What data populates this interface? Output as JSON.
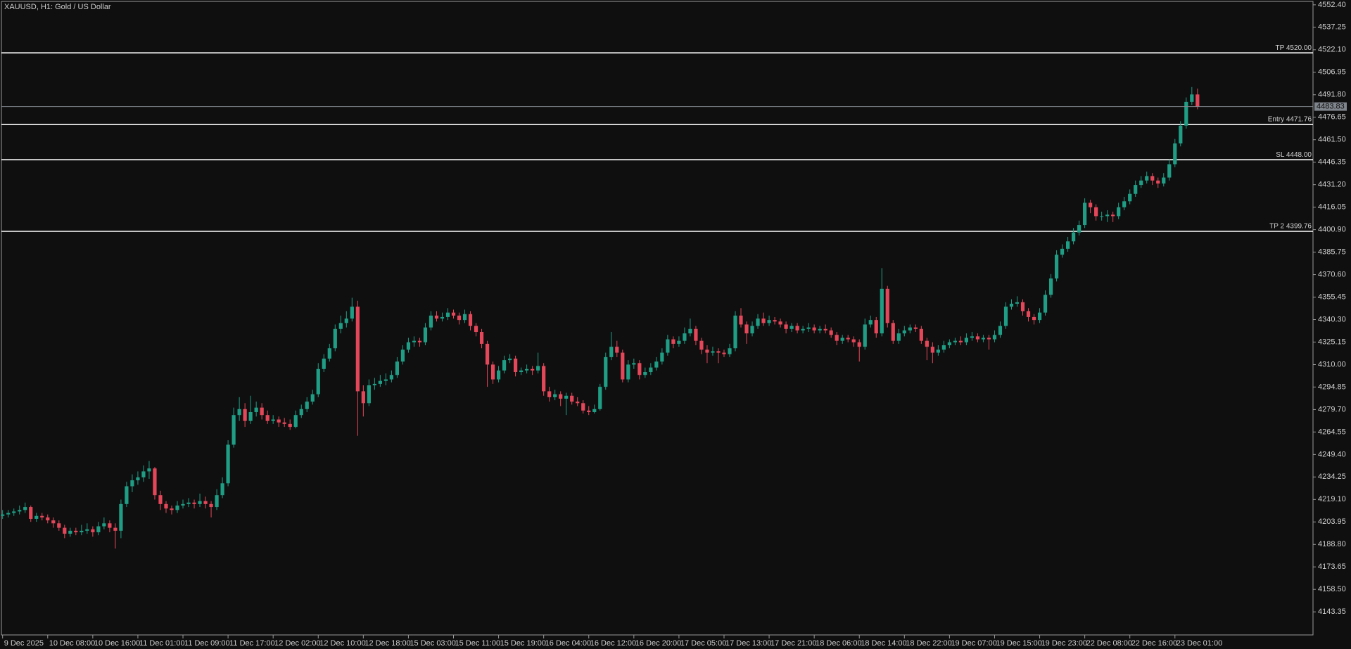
{
  "chart_data": {
    "type": "candlestick",
    "title": "XAUUSD, H1:  Gold / US Dollar",
    "up_color": "#1f9e85",
    "down_color": "#e5475a",
    "level_color": "#ffffff",
    "last_price_color": "#7f858c",
    "ylim": [
      4127.8,
      4554.7
    ],
    "yticks": [
      {
        "value": 4552.4,
        "label": "4552.40"
      },
      {
        "value": 4537.25,
        "label": "4537.25"
      },
      {
        "value": 4522.1,
        "label": "4522.10"
      },
      {
        "value": 4506.95,
        "label": "4506.95"
      },
      {
        "value": 4491.8,
        "label": "4491.80"
      },
      {
        "value": 4476.65,
        "label": "4476.65"
      },
      {
        "value": 4461.5,
        "label": "4461.50"
      },
      {
        "value": 4446.35,
        "label": "4446.35"
      },
      {
        "value": 4431.2,
        "label": "4431.20"
      },
      {
        "value": 4416.05,
        "label": "4416.05"
      },
      {
        "value": 4400.9,
        "label": "4400.90"
      },
      {
        "value": 4385.75,
        "label": "4385.75"
      },
      {
        "value": 4370.6,
        "label": "4370.60"
      },
      {
        "value": 4355.45,
        "label": "4355.45"
      },
      {
        "value": 4340.3,
        "label": "4340.30"
      },
      {
        "value": 4325.15,
        "label": "4325.15"
      },
      {
        "value": 4310,
        "label": "4310.00"
      },
      {
        "value": 4294.85,
        "label": "4294.85"
      },
      {
        "value": 4279.7,
        "label": "4279.70"
      },
      {
        "value": 4264.55,
        "label": "4264.55"
      },
      {
        "value": 4249.4,
        "label": "4249.40"
      },
      {
        "value": 4234.25,
        "label": "4234.25"
      },
      {
        "value": 4219.1,
        "label": "4219.10"
      },
      {
        "value": 4203.95,
        "label": "4203.95"
      },
      {
        "value": 4188.8,
        "label": "4188.80"
      },
      {
        "value": 4173.65,
        "label": "4173.65"
      },
      {
        "value": 4158.5,
        "label": "4158.50"
      },
      {
        "value": 4143.35,
        "label": "4143.35"
      }
    ],
    "levels": [
      {
        "label": "TP 4520.00",
        "value": 4520
      },
      {
        "label": "Entry 4471.76",
        "value": 4471.76
      },
      {
        "label": "SL 4448.00",
        "value": 4448
      },
      {
        "label": "TP 2 4399.76",
        "value": 4399.76
      }
    ],
    "last_price": 4483.83,
    "categories": [
      "9 Dec 2025",
      null,
      null,
      null,
      null,
      null,
      null,
      null,
      "10 Dec 08:00",
      null,
      null,
      null,
      null,
      null,
      null,
      null,
      "10 Dec 16:00",
      null,
      null,
      null,
      null,
      null,
      null,
      null,
      "11 Dec 01:00",
      null,
      null,
      null,
      null,
      null,
      null,
      null,
      "11 Dec 09:00",
      null,
      null,
      null,
      null,
      null,
      null,
      null,
      "11 Dec 17:00",
      null,
      null,
      null,
      null,
      null,
      null,
      null,
      "12 Dec 02:00",
      null,
      null,
      null,
      null,
      null,
      null,
      null,
      "12 Dec 10:00",
      null,
      null,
      null,
      null,
      null,
      null,
      null,
      "12 Dec 18:00",
      null,
      null,
      null,
      null,
      null,
      null,
      null,
      "15 Dec 03:00",
      null,
      null,
      null,
      null,
      null,
      null,
      null,
      "15 Dec 11:00",
      null,
      null,
      null,
      null,
      null,
      null,
      null,
      "15 Dec 19:00",
      null,
      null,
      null,
      null,
      null,
      null,
      null,
      "16 Dec 04:00",
      null,
      null,
      null,
      null,
      null,
      null,
      null,
      "16 Dec 12:00",
      null,
      null,
      null,
      null,
      null,
      null,
      null,
      "16 Dec 20:00",
      null,
      null,
      null,
      null,
      null,
      null,
      null,
      "17 Dec 05:00",
      null,
      null,
      null,
      null,
      null,
      null,
      null,
      "17 Dec 13:00",
      null,
      null,
      null,
      null,
      null,
      null,
      null,
      "17 Dec 21:00",
      null,
      null,
      null,
      null,
      null,
      null,
      null,
      "18 Dec 06:00",
      null,
      null,
      null,
      null,
      null,
      null,
      null,
      "18 Dec 14:00",
      null,
      null,
      null,
      null,
      null,
      null,
      null,
      "18 Dec 22:00",
      null,
      null,
      null,
      null,
      null,
      null,
      null,
      "19 Dec 07:00",
      null,
      null,
      null,
      null,
      null,
      null,
      null,
      "19 Dec 15:00",
      null,
      null,
      null,
      null,
      null,
      null,
      null,
      "19 Dec 23:00",
      null,
      null,
      null,
      null,
      null,
      null,
      null,
      "22 Dec 08:00",
      null,
      null,
      null,
      null,
      null,
      null,
      null,
      "22 Dec 16:00",
      null,
      null,
      null,
      null,
      null,
      null,
      null,
      "23 Dec 01:00",
      null,
      null,
      null,
      null
    ],
    "open": [
      4208,
      4209,
      4210,
      4211,
      4212,
      4214,
      4206,
      4208,
      4207,
      4205,
      4203,
      4200,
      4196,
      4198,
      4197,
      4198,
      4199,
      4197,
      4201,
      4203,
      4200,
      4198,
      4216,
      4228,
      4232,
      4234,
      4238,
      4240,
      4222,
      4216,
      4213,
      4212,
      4215,
      4216,
      4217,
      4216,
      4218,
      4216,
      4214,
      4222,
      4230,
      4256,
      4276,
      4280,
      4272,
      4278,
      4281,
      4276,
      4272,
      4273,
      4271,
      4270,
      4268,
      4276,
      4280,
      4285,
      4290,
      4307,
      4314,
      4321,
      4334,
      4338,
      4341,
      4349,
      4292,
      4284,
      4296,
      4297,
      4299,
      4300,
      4303,
      4312,
      4320,
      4325,
      4326,
      4325,
      4335,
      4343,
      4341,
      4342,
      4345,
      4343,
      4340,
      4344,
      4336,
      4332,
      4324,
      4310,
      4300,
      4306,
      4313,
      4314,
      4305,
      4306,
      4307,
      4306,
      4309,
      4292,
      4288,
      4290,
      4287,
      4289,
      4285,
      4284,
      4279,
      4278,
      4280,
      4295,
      4315,
      4322,
      4318,
      4300,
      4310,
      4311,
      4303,
      4305,
      4308,
      4312,
      4318,
      4327,
      4324,
      4326,
      4331,
      4334,
      4326,
      4320,
      4318,
      4319,
      4318,
      4317,
      4321,
      4343,
      4337,
      4331,
      4336,
      4341,
      4338,
      4340,
      4339,
      4337,
      4334,
      4336,
      4333,
      4334,
      4335,
      4333,
      4334,
      4333,
      4330,
      4326,
      4328,
      4327,
      4325,
      4322,
      4337,
      4340,
      4331,
      4361,
      4338,
      4326,
      4331,
      4333,
      4335,
      4334,
      4326,
      4322,
      4318,
      4320,
      4323,
      4325,
      4326,
      4325,
      4328,
      4329,
      4327,
      4328,
      4327,
      4330,
      4336,
      4349,
      4351,
      4352,
      4346,
      4342,
      4340,
      4345,
      4357,
      4368,
      4384,
      4388,
      4393,
      4399,
      4404,
      4419,
      4416,
      4410,
      4410,
      4411,
      4410,
      4416,
      4420,
      4425,
      4431,
      4434,
      4437,
      4434,
      4432,
      4436,
      4445,
      4459,
      4471,
      4487,
      4492
    ],
    "high": [
      4212,
      4212,
      4213,
      4215,
      4217,
      4215,
      4210,
      4210,
      4209,
      4207,
      4205,
      4202,
      4200,
      4200,
      4202,
      4203,
      4201,
      4204,
      4207,
      4205,
      4203,
      4219,
      4231,
      4236,
      4238,
      4242,
      4245,
      4241,
      4225,
      4218,
      4215,
      4218,
      4219,
      4220,
      4219,
      4223,
      4221,
      4218,
      4226,
      4234,
      4259,
      4281,
      4288,
      4284,
      4289,
      4285,
      4284,
      4279,
      4276,
      4275,
      4274,
      4273,
      4279,
      4283,
      4288,
      4293,
      4311,
      4317,
      4324,
      4337,
      4343,
      4346,
      4355,
      4353,
      4296,
      4300,
      4301,
      4303,
      4304,
      4306,
      4315,
      4323,
      4328,
      4329,
      4328,
      4338,
      4346,
      4346,
      4345,
      4348,
      4347,
      4345,
      4347,
      4346,
      4338,
      4334,
      4326,
      4312,
      4309,
      4316,
      4317,
      4316,
      4308,
      4310,
      4309,
      4318,
      4311,
      4295,
      4293,
      4292,
      4291,
      4291,
      4288,
      4286,
      4282,
      4283,
      4297,
      4318,
      4332,
      4326,
      4320,
      4313,
      4314,
      4313,
      4308,
      4311,
      4315,
      4321,
      4330,
      4329,
      4329,
      4335,
      4341,
      4336,
      4328,
      4323,
      4322,
      4321,
      4320,
      4324,
      4346,
      4348,
      4339,
      4339,
      4344,
      4345,
      4343,
      4342,
      4341,
      4339,
      4338,
      4338,
      4336,
      4338,
      4337,
      4336,
      4337,
      4335,
      4332,
      4330,
      4330,
      4329,
      4327,
      4341,
      4343,
      4342,
      4375,
      4363,
      4340,
      4334,
      4336,
      4337,
      4337,
      4336,
      4328,
      4325,
      4323,
      4326,
      4327,
      4328,
      4329,
      4331,
      4332,
      4331,
      4330,
      4330,
      4333,
      4339,
      4352,
      4354,
      4356,
      4354,
      4348,
      4344,
      4348,
      4360,
      4371,
      4387,
      4391,
      4396,
      4402,
      4407,
      4422,
      4421,
      4418,
      4413,
      4414,
      4413,
      4419,
      4423,
      4428,
      4434,
      4437,
      4440,
      4439,
      4436,
      4439,
      4448,
      4462,
      4474,
      4490,
      4497,
      4496
    ],
    "low": [
      4206,
      4207,
      4208,
      4209,
      4210,
      4204,
      4204,
      4205,
      4203,
      4200,
      4198,
      4193,
      4194,
      4195,
      4195,
      4196,
      4194,
      4195,
      4199,
      4197,
      4186,
      4193,
      4214,
      4224,
      4229,
      4231,
      4233,
      4219,
      4212,
      4210,
      4209,
      4210,
      4213,
      4214,
      4213,
      4214,
      4213,
      4207,
      4212,
      4220,
      4228,
      4254,
      4272,
      4268,
      4270,
      4275,
      4273,
      4270,
      4270,
      4268,
      4268,
      4266,
      4267,
      4274,
      4278,
      4283,
      4288,
      4305,
      4312,
      4319,
      4331,
      4335,
      4339,
      4262,
      4275,
      4282,
      4293,
      4295,
      4296,
      4298,
      4301,
      4310,
      4318,
      4322,
      4322,
      4323,
      4333,
      4339,
      4339,
      4340,
      4341,
      4337,
      4338,
      4333,
      4329,
      4321,
      4295,
      4297,
      4298,
      4304,
      4311,
      4302,
      4303,
      4304,
      4303,
      4304,
      4289,
      4285,
      4286,
      4282,
      4276,
      4283,
      4282,
      4277,
      4276,
      4277,
      4279,
      4293,
      4313,
      4315,
      4298,
      4298,
      4307,
      4300,
      4301,
      4303,
      4306,
      4310,
      4316,
      4321,
      4322,
      4324,
      4329,
      4323,
      4317,
      4311,
      4316,
      4311,
      4315,
      4315,
      4319,
      4335,
      4324,
      4329,
      4334,
      4336,
      4336,
      4337,
      4335,
      4331,
      4332,
      4331,
      4331,
      4332,
      4331,
      4331,
      4331,
      4328,
      4323,
      4324,
      4325,
      4322,
      4312,
      4320,
      4335,
      4328,
      4329,
      4335,
      4324,
      4324,
      4329,
      4331,
      4332,
      4324,
      4313,
      4311,
      4316,
      4318,
      4321,
      4323,
      4323,
      4323,
      4326,
      4325,
      4325,
      4320,
      4325,
      4328,
      4334,
      4347,
      4349,
      4343,
      4339,
      4337,
      4338,
      4343,
      4355,
      4366,
      4382,
      4386,
      4391,
      4397,
      4402,
      4412,
      4407,
      4407,
      4406,
      4406,
      4408,
      4414,
      4418,
      4423,
      4429,
      4432,
      4431,
      4429,
      4430,
      4434,
      4443,
      4457,
      4469,
      4485,
      4482
    ],
    "close": [
      4209,
      4210,
      4211,
      4212,
      4214,
      4206,
      4208,
      4207,
      4205,
      4203,
      4200,
      4196,
      4198,
      4197,
      4198,
      4199,
      4197,
      4201,
      4203,
      4200,
      4198,
      4216,
      4228,
      4232,
      4234,
      4238,
      4240,
      4222,
      4216,
      4213,
      4212,
      4215,
      4216,
      4217,
      4216,
      4218,
      4216,
      4214,
      4222,
      4230,
      4256,
      4276,
      4280,
      4272,
      4278,
      4281,
      4276,
      4272,
      4273,
      4271,
      4270,
      4268,
      4276,
      4280,
      4285,
      4290,
      4307,
      4314,
      4321,
      4334,
      4338,
      4341,
      4349,
      4292,
      4284,
      4296,
      4297,
      4299,
      4300,
      4303,
      4312,
      4320,
      4325,
      4326,
      4325,
      4335,
      4343,
      4341,
      4342,
      4345,
      4343,
      4340,
      4344,
      4336,
      4332,
      4324,
      4310,
      4300,
      4306,
      4313,
      4314,
      4305,
      4306,
      4307,
      4306,
      4309,
      4292,
      4288,
      4290,
      4287,
      4289,
      4285,
      4284,
      4279,
      4278,
      4280,
      4295,
      4315,
      4322,
      4318,
      4300,
      4310,
      4311,
      4303,
      4305,
      4308,
      4312,
      4318,
      4327,
      4324,
      4326,
      4331,
      4334,
      4326,
      4320,
      4318,
      4319,
      4318,
      4317,
      4321,
      4343,
      4337,
      4331,
      4336,
      4341,
      4338,
      4340,
      4339,
      4337,
      4334,
      4336,
      4333,
      4334,
      4335,
      4333,
      4334,
      4333,
      4330,
      4326,
      4328,
      4327,
      4325,
      4322,
      4337,
      4340,
      4331,
      4361,
      4338,
      4326,
      4331,
      4333,
      4335,
      4334,
      4326,
      4322,
      4318,
      4320,
      4323,
      4325,
      4326,
      4325,
      4328,
      4329,
      4327,
      4328,
      4327,
      4330,
      4336,
      4349,
      4351,
      4352,
      4346,
      4342,
      4340,
      4345,
      4357,
      4368,
      4384,
      4388,
      4393,
      4399,
      4404,
      4419,
      4416,
      4410,
      4410,
      4411,
      4410,
      4416,
      4420,
      4425,
      4431,
      4434,
      4437,
      4434,
      4432,
      4436,
      4445,
      4459,
      4471,
      4487,
      4492,
      4483.83
    ]
  }
}
